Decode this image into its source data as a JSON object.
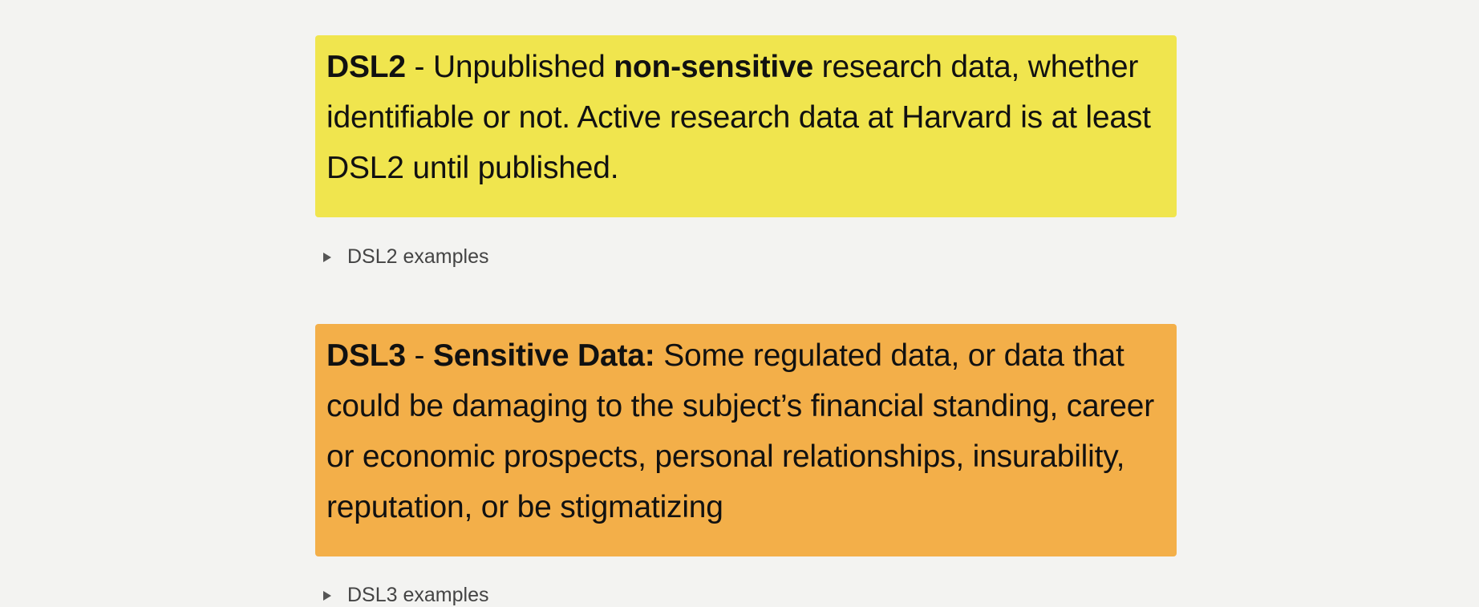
{
  "colors": {
    "background": "#f3f3f1",
    "dsl2_callout": "#f0e54e",
    "dsl3_callout": "#f3af49"
  },
  "dsl2": {
    "level": "DSL2",
    "separator": " - ",
    "text_before": "Unpublished ",
    "emphasis": "non-sensitive",
    "text_after": " research data, whether identifiable or not. Active research data at Harvard is at least DSL2 until published.",
    "examples_label": "DSL2 examples"
  },
  "dsl3": {
    "level": "DSL3",
    "separator": " - ",
    "emphasis": "Sensitive Data:",
    "text_after": " Some regulated data, or data that could be damaging to the subject’s financial standing, career or economic prospects, personal relationships, insurability, reputation, or be stigmatizing",
    "examples_label": "DSL3 examples"
  }
}
